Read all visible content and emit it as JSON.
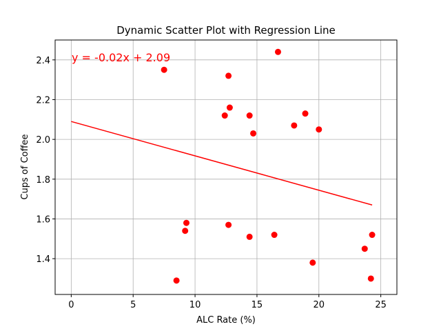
{
  "chart_data": {
    "type": "scatter",
    "title": "Dynamic Scatter Plot with Regression Line",
    "xlabel": "ALC Rate (%)",
    "ylabel": "Cups of Coffee",
    "xlim": [
      -1.3,
      26.3
    ],
    "ylim": [
      1.22,
      2.5
    ],
    "xticks": [
      0,
      5,
      10,
      15,
      20,
      25
    ],
    "yticks": [
      1.4,
      1.6,
      1.8,
      2.0,
      2.2,
      2.4
    ],
    "grid": true,
    "point_color": "#ff0000",
    "points": [
      {
        "x": 7.5,
        "y": 2.35
      },
      {
        "x": 12.7,
        "y": 2.32
      },
      {
        "x": 16.7,
        "y": 2.44
      },
      {
        "x": 12.8,
        "y": 2.16
      },
      {
        "x": 12.4,
        "y": 2.12
      },
      {
        "x": 14.4,
        "y": 2.12
      },
      {
        "x": 14.7,
        "y": 2.03
      },
      {
        "x": 18.9,
        "y": 2.13
      },
      {
        "x": 18.0,
        "y": 2.07
      },
      {
        "x": 20.0,
        "y": 2.05
      },
      {
        "x": 9.3,
        "y": 1.58
      },
      {
        "x": 9.2,
        "y": 1.54
      },
      {
        "x": 12.7,
        "y": 1.57
      },
      {
        "x": 14.4,
        "y": 1.51
      },
      {
        "x": 16.4,
        "y": 1.52
      },
      {
        "x": 8.5,
        "y": 1.29
      },
      {
        "x": 19.5,
        "y": 1.38
      },
      {
        "x": 23.7,
        "y": 1.45
      },
      {
        "x": 24.3,
        "y": 1.52
      },
      {
        "x": 24.2,
        "y": 1.3
      }
    ],
    "regression": {
      "equation": "y = -0.02x + 2.09",
      "x_start": 0,
      "y_start": 2.09,
      "x_end": 24.3,
      "y_end": 1.67,
      "color": "#ff0000"
    }
  }
}
